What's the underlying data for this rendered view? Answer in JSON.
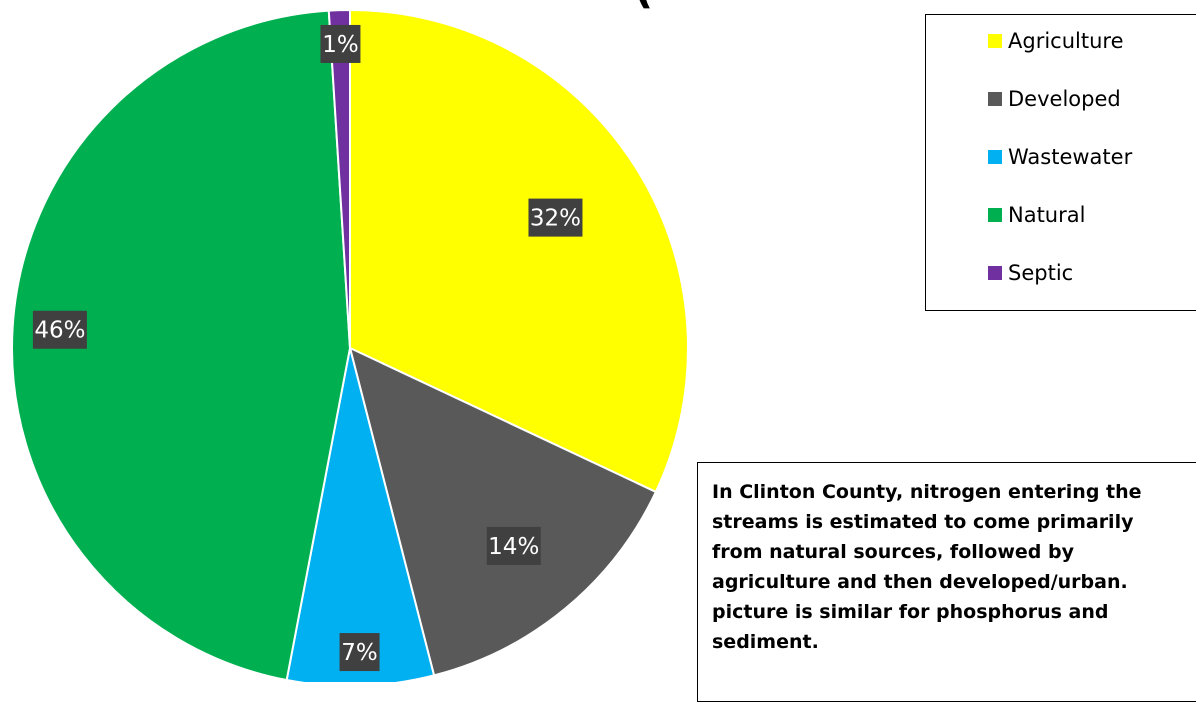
{
  "chart_data": {
    "type": "pie",
    "title_fragment": "(",
    "slices": [
      {
        "name": "Agriculture",
        "value": 32,
        "label": "32%",
        "color": "#ffff00"
      },
      {
        "name": "Developed",
        "value": 14,
        "label": "14%",
        "color": "#595959"
      },
      {
        "name": "Wastewater",
        "value": 7,
        "label": "7%",
        "color": "#00b0f0"
      },
      {
        "name": "Natural",
        "value": 46,
        "label": "46%",
        "color": "#00b050"
      },
      {
        "name": "Septic",
        "value": 1,
        "label": "1%",
        "color": "#7030a0"
      }
    ],
    "data_label_background": "#404040",
    "start_angle_deg": 0,
    "direction": "clockwise",
    "legend": {
      "position": "right",
      "items": [
        "Agriculture",
        "Developed",
        "Wastewater",
        "Natural",
        "Septic"
      ]
    }
  },
  "note": {
    "text": "In Clinton County, nitrogen entering the\nstreams is estimated to come primarily\nfrom natural sources, followed by\nagriculture and then developed/urban.\npicture is similar for phosphorus and\nsediment."
  }
}
